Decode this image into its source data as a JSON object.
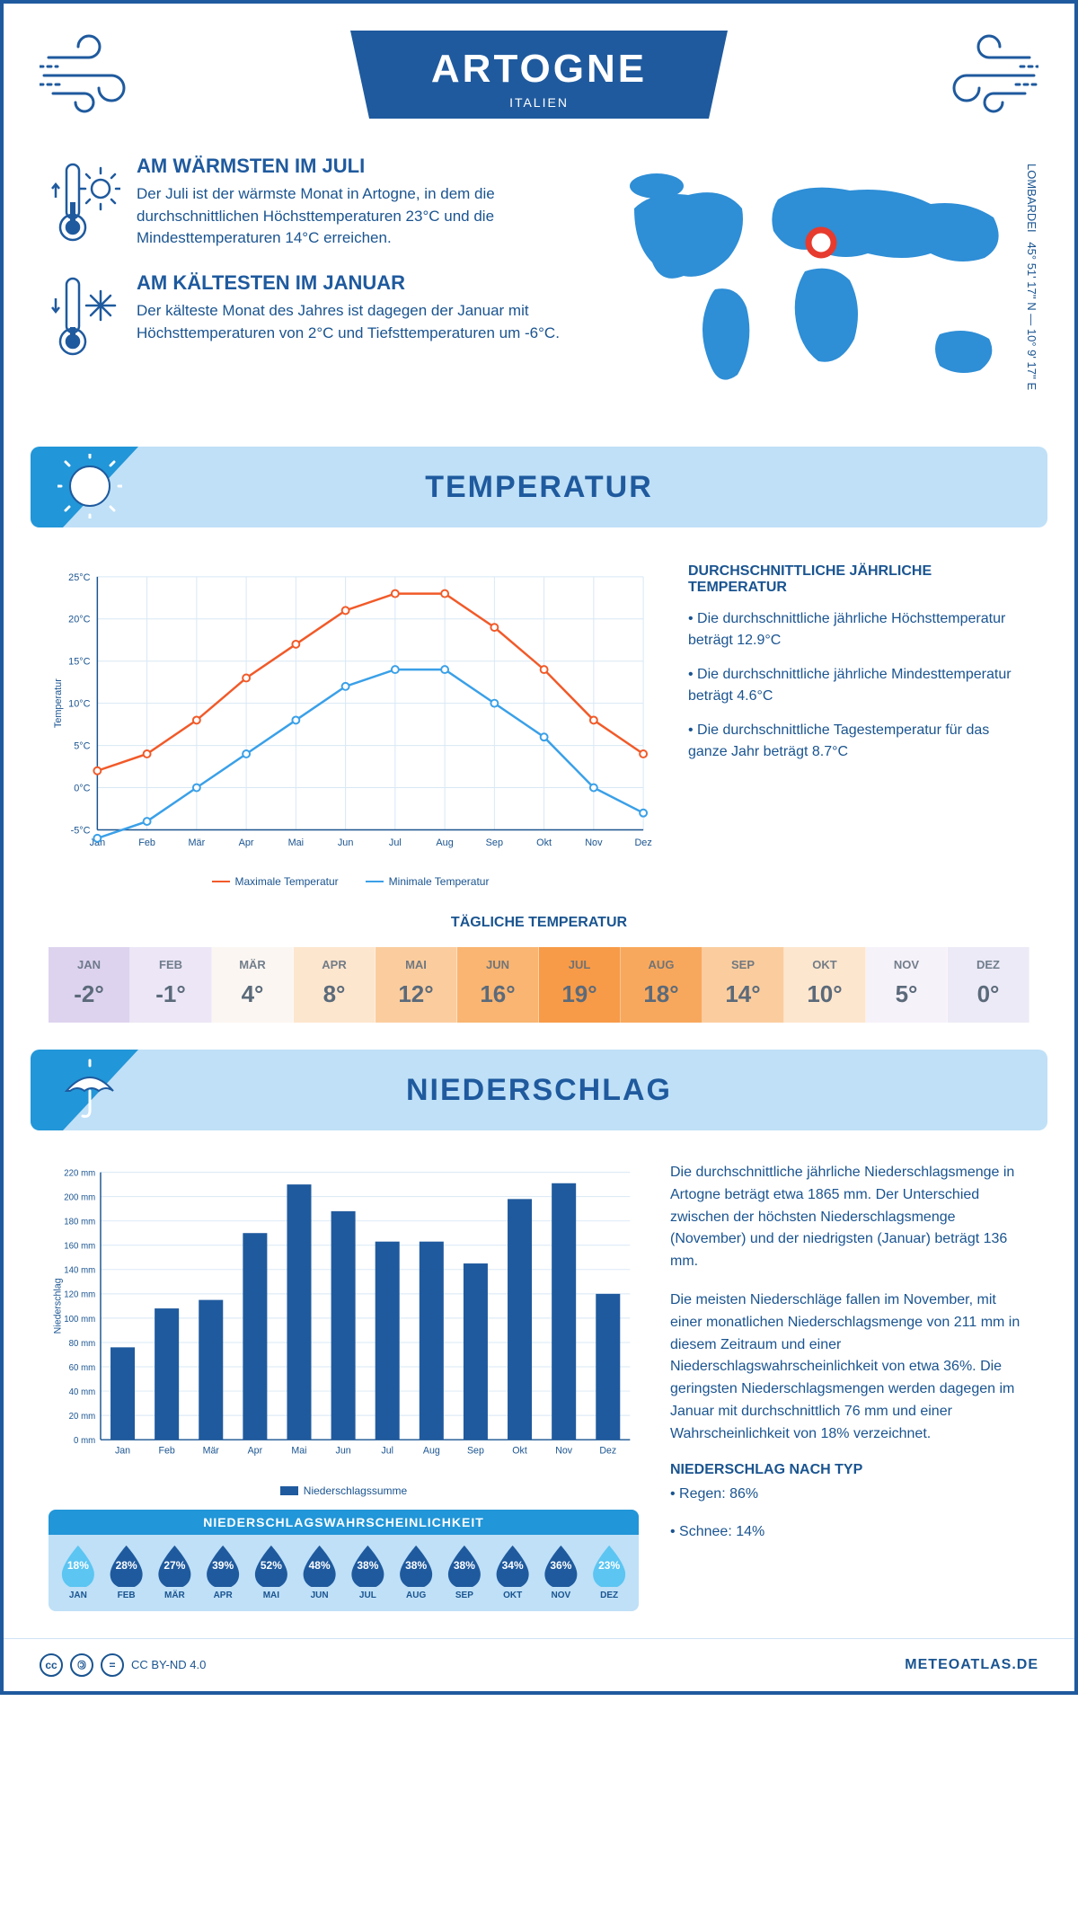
{
  "header": {
    "title": "ARTOGNE",
    "subtitle": "ITALIEN"
  },
  "coords": {
    "region": "LOMBARDEI",
    "lat": "45° 51' 17'' N",
    "lon": "10° 9' 17'' E"
  },
  "intro": {
    "warm": {
      "title": "AM WÄRMSTEN IM JULI",
      "text": "Der Juli ist der wärmste Monat in Artogne, in dem die durchschnittlichen Höchsttemperaturen 23°C und die Mindesttemperaturen 14°C erreichen."
    },
    "cold": {
      "title": "AM KÄLTESTEN IM JANUAR",
      "text": "Der kälteste Monat des Jahres ist dagegen der Januar mit Höchsttemperaturen von 2°C und Tiefsttemperaturen um -6°C."
    }
  },
  "sections": {
    "temp": "TEMPERATUR",
    "precip": "NIEDERSCHLAG"
  },
  "temp_chart": {
    "type": "line",
    "months": [
      "Jan",
      "Feb",
      "Mär",
      "Apr",
      "Mai",
      "Jun",
      "Jul",
      "Aug",
      "Sep",
      "Okt",
      "Nov",
      "Dez"
    ],
    "max_series": [
      2,
      4,
      8,
      13,
      17,
      21,
      23,
      23,
      19,
      14,
      8,
      4
    ],
    "min_series": [
      -6,
      -4,
      0,
      4,
      8,
      12,
      14,
      14,
      10,
      6,
      0,
      -3
    ],
    "max_color": "#f15a29",
    "min_color": "#3aa0e8",
    "ylabel": "Temperatur",
    "ylim": [
      -5,
      25
    ],
    "ytick_step": 5,
    "grid_color": "#d8e8f5",
    "axis_color": "#1a5490",
    "tick_fontsize": 11,
    "legend_max": "Maximale Temperatur",
    "legend_min": "Minimale Temperatur"
  },
  "temp_facts": {
    "title": "DURCHSCHNITTLICHE JÄHRLICHE TEMPERATUR",
    "b1": "• Die durchschnittliche jährliche Höchsttemperatur beträgt 12.9°C",
    "b2": "• Die durchschnittliche jährliche Mindesttemperatur beträgt 4.6°C",
    "b3": "• Die durchschnittliche Tagestemperatur für das ganze Jahr beträgt 8.7°C"
  },
  "daily": {
    "title": "TÄGLICHE TEMPERATUR",
    "months": [
      "JAN",
      "FEB",
      "MÄR",
      "APR",
      "MAI",
      "JUN",
      "JUL",
      "AUG",
      "SEP",
      "OKT",
      "NOV",
      "DEZ"
    ],
    "values": [
      "-2°",
      "-1°",
      "4°",
      "8°",
      "12°",
      "16°",
      "19°",
      "18°",
      "14°",
      "10°",
      "5°",
      "0°"
    ],
    "bg_colors": [
      "#ddd3ef",
      "#ece6f6",
      "#fbf6f2",
      "#fde6ce",
      "#fbcd9e",
      "#f9b571",
      "#f79b48",
      "#f8a85c",
      "#fbcd9e",
      "#fde6ce",
      "#f6f2f9",
      "#eceaf6"
    ],
    "text_color": "#5b6a7a"
  },
  "precip_chart": {
    "type": "bar",
    "months": [
      "Jan",
      "Feb",
      "Mär",
      "Apr",
      "Mai",
      "Jun",
      "Jul",
      "Aug",
      "Sep",
      "Okt",
      "Nov",
      "Dez"
    ],
    "values": [
      76,
      108,
      115,
      170,
      210,
      188,
      163,
      163,
      145,
      198,
      211,
      120
    ],
    "bar_color": "#1f5a9e",
    "ylabel": "Niederschlag",
    "ylim": [
      0,
      220
    ],
    "ytick_step": 20,
    "grid_color": "#d8e8f5",
    "axis_color": "#1a5490",
    "legend": "Niederschlagssumme",
    "bar_width": 0.55
  },
  "precip_text": {
    "p1": "Die durchschnittliche jährliche Niederschlagsmenge in Artogne beträgt etwa 1865 mm. Der Unterschied zwischen der höchsten Niederschlagsmenge (November) und der niedrigsten (Januar) beträgt 136 mm.",
    "p2": "Die meisten Niederschläge fallen im November, mit einer monatlichen Niederschlagsmenge von 211 mm in diesem Zeitraum und einer Niederschlagswahrscheinlichkeit von etwa 36%. Die geringsten Niederschlagsmengen werden dagegen im Januar mit durchschnittlich 76 mm und einer Wahrscheinlichkeit von 18% verzeichnet.",
    "type_title": "NIEDERSCHLAG NACH TYP",
    "type1": "• Regen: 86%",
    "type2": "• Schnee: 14%"
  },
  "prob": {
    "title": "NIEDERSCHLAGSWAHRSCHEINLICHKEIT",
    "months": [
      "JAN",
      "FEB",
      "MÄR",
      "APR",
      "MAI",
      "JUN",
      "JUL",
      "AUG",
      "SEP",
      "OKT",
      "NOV",
      "DEZ"
    ],
    "values": [
      "18%",
      "28%",
      "27%",
      "39%",
      "52%",
      "48%",
      "38%",
      "38%",
      "38%",
      "34%",
      "36%",
      "23%"
    ],
    "colors": [
      "#5cc5f2",
      "#1f5a9e",
      "#1f5a9e",
      "#1f5a9e",
      "#1f5a9e",
      "#1f5a9e",
      "#1f5a9e",
      "#1f5a9e",
      "#1f5a9e",
      "#1f5a9e",
      "#1f5a9e",
      "#5cc5f2"
    ]
  },
  "footer": {
    "license": "CC BY-ND 4.0",
    "site": "METEOATLAS.DE"
  }
}
